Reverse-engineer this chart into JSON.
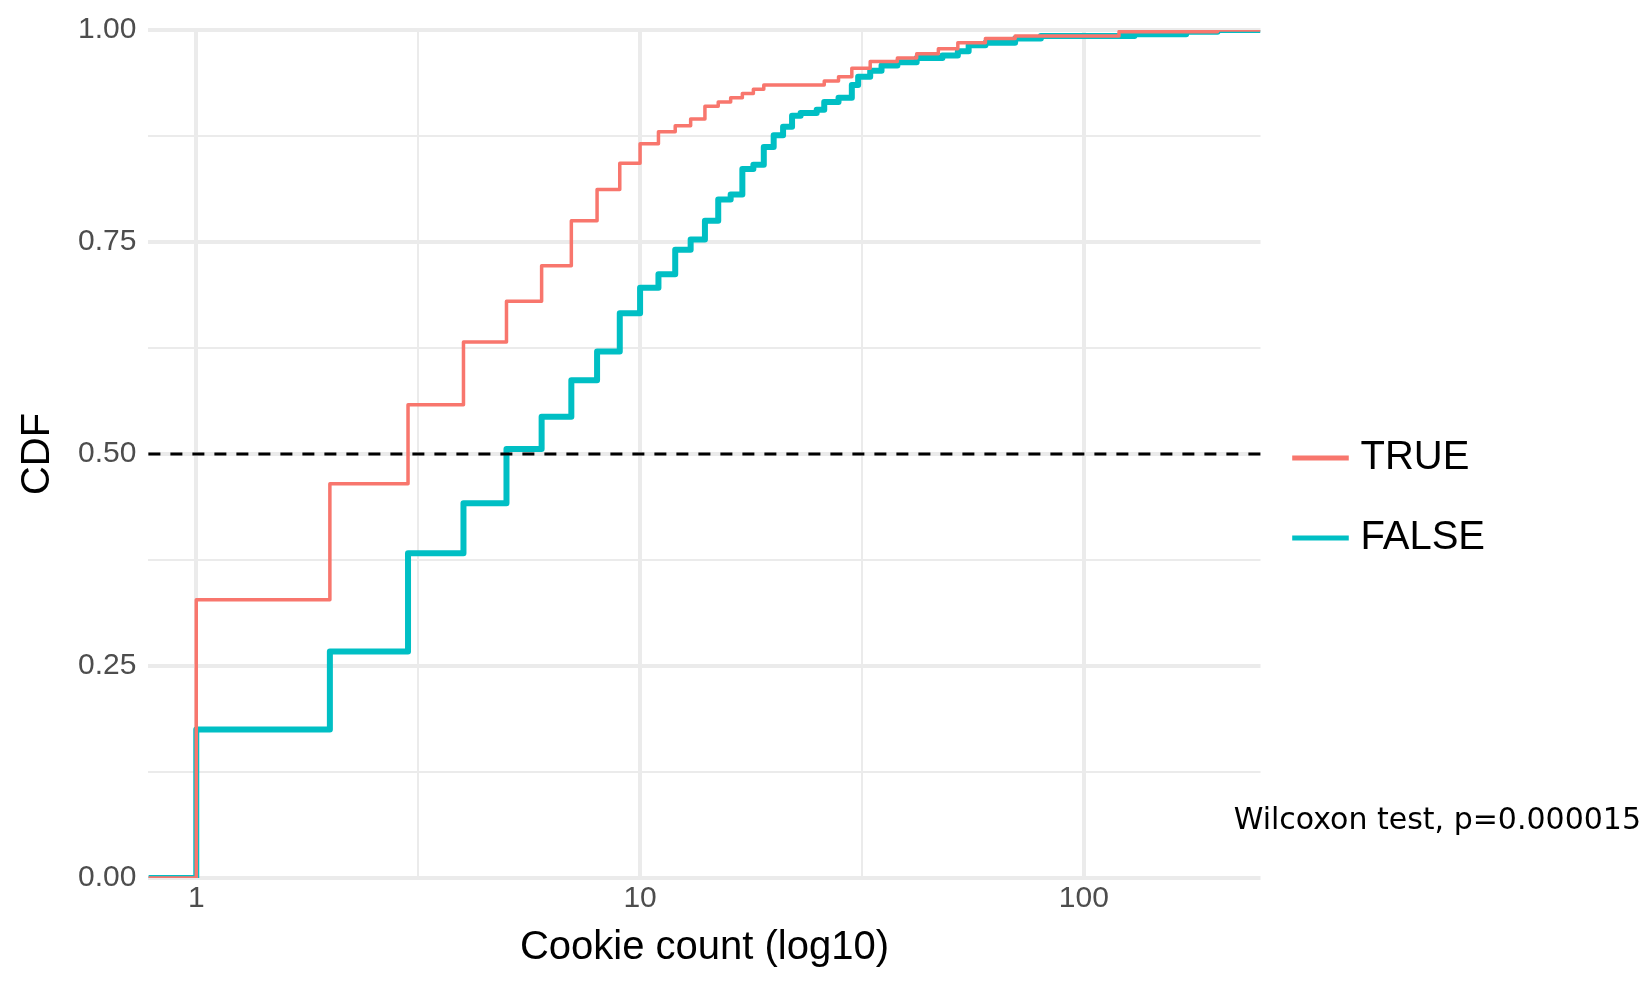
{
  "chart_data": {
    "type": "step",
    "xlabel": "Cookie count (log10)",
    "ylabel": "CDF",
    "log": "x",
    "xlim": [
      0.78,
      250
    ],
    "xticks": [
      1,
      {
        "value": 3.162,
        "label": null
      },
      10,
      {
        "value": 31.62,
        "label": null
      },
      100
    ],
    "ylim": [
      0,
      1
    ],
    "yticks": [
      {
        "value": 0,
        "label": "0.00"
      },
      {
        "value": 0.125,
        "label": null
      },
      {
        "value": 0.25,
        "label": "0.25"
      },
      {
        "value": 0.375,
        "label": null
      },
      {
        "value": 0.5,
        "label": "0.50"
      },
      {
        "value": 0.625,
        "label": null
      },
      {
        "value": 0.75,
        "label": "0.75"
      },
      {
        "value": 0.875,
        "label": null
      },
      {
        "value": 1,
        "label": "1.00"
      }
    ],
    "grid": true,
    "legend": "right",
    "line_style": "solid",
    "marker": "none",
    "ref_lines": [
      {
        "axis": "y",
        "value": 0.5,
        "color": "#000000",
        "line_style": "dashed"
      }
    ],
    "annotations": [
      "Wilcoxon test, p=0.000015"
    ],
    "series": [
      {
        "name": "TRUE",
        "color": "#f8766d",
        "x": [
          0.78,
          1,
          2,
          3,
          4,
          5,
          6,
          7,
          8,
          9,
          10,
          11,
          12,
          13,
          14,
          15,
          16,
          17,
          18,
          19,
          26,
          28,
          30,
          33,
          38,
          42,
          47,
          52,
          60,
          70,
          120,
          200,
          250
        ],
        "values": [
          0,
          0.328,
          0.465,
          0.558,
          0.632,
          0.68,
          0.722,
          0.775,
          0.812,
          0.843,
          0.866,
          0.88,
          0.887,
          0.895,
          0.91,
          0.915,
          0.92,
          0.925,
          0.93,
          0.935,
          0.94,
          0.945,
          0.955,
          0.963,
          0.967,
          0.972,
          0.978,
          0.985,
          0.99,
          0.993,
          0.998,
          1,
          1
        ]
      },
      {
        "name": "FALSE",
        "color": "#00bfc4",
        "x": [
          0.78,
          1,
          2,
          3,
          4,
          5,
          6,
          7,
          8,
          9,
          10,
          11,
          12,
          13,
          14,
          15,
          16,
          17,
          18,
          19,
          20,
          21,
          22,
          23,
          25,
          26,
          28,
          30,
          31,
          33,
          35,
          38,
          42,
          48,
          52,
          55,
          60,
          70,
          80,
          130,
          170,
          200,
          250
        ],
        "values": [
          0,
          0.175,
          0.267,
          0.383,
          0.442,
          0.506,
          0.544,
          0.587,
          0.621,
          0.666,
          0.696,
          0.712,
          0.741,
          0.753,
          0.775,
          0.8,
          0.806,
          0.836,
          0.841,
          0.862,
          0.876,
          0.886,
          0.899,
          0.902,
          0.906,
          0.915,
          0.92,
          0.935,
          0.945,
          0.952,
          0.958,
          0.962,
          0.967,
          0.97,
          0.975,
          0.982,
          0.985,
          0.99,
          0.993,
          0.995,
          0.998,
          1,
          1
        ]
      }
    ]
  }
}
